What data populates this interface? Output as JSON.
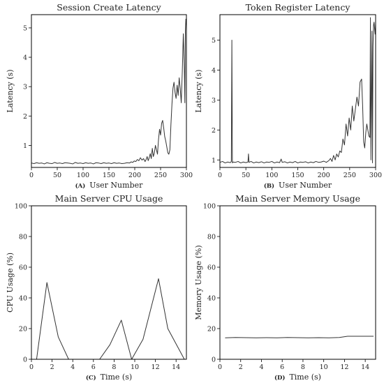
{
  "chart_data": [
    {
      "type": "line",
      "panel": "(A)",
      "title": "Session Create Latency",
      "xlabel": "User Number",
      "ylabel": "Latency (s)",
      "xlim": [
        0,
        300
      ],
      "ylim": [
        0.25,
        5.45
      ],
      "xticks": [
        0,
        50,
        100,
        150,
        200,
        250,
        300
      ],
      "yticks": [
        1,
        2,
        3,
        4,
        5
      ],
      "grid": false,
      "series": [
        {
          "x": [
            0,
            5,
            10,
            15,
            20,
            25,
            30,
            35,
            40,
            45,
            50,
            55,
            60,
            65,
            70,
            75,
            80,
            85,
            90,
            95,
            100,
            105,
            110,
            115,
            120,
            125,
            130,
            135,
            140,
            145,
            150,
            155,
            160,
            165,
            170,
            175,
            180,
            185,
            190,
            193,
            196,
            199,
            202,
            205,
            208,
            211,
            214,
            217,
            220,
            222,
            224,
            226,
            228,
            230,
            232,
            234,
            236,
            238,
            240,
            242,
            244,
            246,
            248,
            250,
            252,
            254,
            256,
            258,
            260,
            262,
            264,
            266,
            268,
            270,
            272,
            274,
            276,
            278,
            280,
            282,
            284,
            286,
            288,
            290,
            292,
            294,
            296,
            297,
            298,
            299,
            300
          ],
          "y": [
            0.4,
            0.38,
            0.41,
            0.39,
            0.4,
            0.37,
            0.41,
            0.39,
            0.38,
            0.42,
            0.39,
            0.4,
            0.38,
            0.41,
            0.4,
            0.39,
            0.37,
            0.42,
            0.39,
            0.4,
            0.38,
            0.41,
            0.39,
            0.4,
            0.37,
            0.41,
            0.4,
            0.38,
            0.41,
            0.39,
            0.4,
            0.38,
            0.41,
            0.39,
            0.4,
            0.38,
            0.39,
            0.41,
            0.4,
            0.44,
            0.42,
            0.47,
            0.45,
            0.52,
            0.48,
            0.58,
            0.5,
            0.55,
            0.45,
            0.52,
            0.62,
            0.48,
            0.58,
            0.72,
            0.55,
            0.9,
            0.62,
            0.75,
            1.0,
            0.85,
            0.7,
            1.2,
            1.55,
            1.35,
            1.75,
            1.85,
            1.6,
            1.3,
            1.15,
            0.95,
            0.75,
            0.7,
            0.85,
            1.7,
            2.4,
            2.95,
            3.15,
            2.8,
            2.6,
            3.05,
            2.7,
            3.3,
            2.95,
            2.45,
            3.5,
            4.8,
            3.6,
            2.45,
            4.9,
            5.3,
            5.1
          ]
        }
      ]
    },
    {
      "type": "line",
      "panel": "(B)",
      "title": "Token Register Latency",
      "xlabel": "User Number",
      "ylabel": "Latency (s)",
      "xlim": [
        0,
        300
      ],
      "ylim": [
        0.75,
        5.85
      ],
      "xticks": [
        0,
        50,
        100,
        150,
        200,
        250,
        300
      ],
      "yticks": [
        1,
        2,
        3,
        4,
        5
      ],
      "grid": false,
      "series": [
        {
          "x": [
            0,
            5,
            10,
            15,
            20,
            22,
            23,
            24,
            25,
            30,
            35,
            40,
            45,
            50,
            54,
            55,
            56,
            60,
            65,
            70,
            75,
            80,
            85,
            90,
            95,
            100,
            105,
            110,
            115,
            118,
            120,
            125,
            130,
            135,
            140,
            145,
            150,
            155,
            160,
            165,
            170,
            175,
            180,
            185,
            190,
            195,
            200,
            205,
            210,
            213,
            216,
            219,
            222,
            225,
            228,
            231,
            234,
            237,
            240,
            243,
            246,
            249,
            252,
            255,
            258,
            261,
            264,
            267,
            270,
            273,
            275,
            277,
            279,
            281,
            283,
            285,
            287,
            289,
            290,
            291,
            292,
            293,
            294,
            295,
            296,
            297,
            298,
            299,
            300
          ],
          "y": [
            0.92,
            0.95,
            0.9,
            0.93,
            0.91,
            0.95,
            5.0,
            0.9,
            0.93,
            0.92,
            0.95,
            0.9,
            0.93,
            0.91,
            0.93,
            1.2,
            0.92,
            0.95,
            0.9,
            0.93,
            0.91,
            0.94,
            0.9,
            0.93,
            0.92,
            0.95,
            0.9,
            0.93,
            0.91,
            1.03,
            0.92,
            0.94,
            0.9,
            0.93,
            0.91,
            0.95,
            0.9,
            0.93,
            0.92,
            0.94,
            0.9,
            0.93,
            0.91,
            0.95,
            0.92,
            0.93,
            0.96,
            0.92,
            0.98,
            1.05,
            0.95,
            1.15,
            1.0,
            1.2,
            1.1,
            1.3,
            1.25,
            1.7,
            1.5,
            2.2,
            1.8,
            2.4,
            2.0,
            2.8,
            2.3,
            2.7,
            3.1,
            2.8,
            3.6,
            3.7,
            2.8,
            1.6,
            1.4,
            1.9,
            2.2,
            2.0,
            1.8,
            1.75,
            5.75,
            1.0,
            3.2,
            5.3,
            0.9,
            4.8,
            5.5,
            5.6,
            5.4,
            5.2,
            5.55
          ]
        }
      ]
    },
    {
      "type": "line",
      "panel": "(C)",
      "title": "Main Server CPU Usage",
      "xlabel": "Time (s)",
      "ylabel": "CPU Usage (%)",
      "xlim": [
        0,
        15
      ],
      "ylim": [
        0,
        100
      ],
      "xticks": [
        0,
        2,
        4,
        6,
        8,
        10,
        12,
        14
      ],
      "yticks": [
        0,
        20,
        40,
        60,
        80,
        100
      ],
      "grid": false,
      "series": [
        {
          "x": [
            0.5,
            1.5,
            2.6,
            3.6,
            4.6,
            5.6,
            6.6,
            7.6,
            8.7,
            9.7,
            10.8,
            12.3,
            13.2,
            14.8
          ],
          "y": [
            0,
            50,
            14.5,
            0,
            0,
            0,
            0,
            9.5,
            25.5,
            0,
            13,
            52.5,
            20,
            0
          ]
        }
      ]
    },
    {
      "type": "line",
      "panel": "(D)",
      "title": "Main Server Memory Usage",
      "xlabel": "Time (s)",
      "ylabel": "Memory Usage (%)",
      "xlim": [
        0,
        15
      ],
      "ylim": [
        0,
        100
      ],
      "xticks": [
        0,
        2,
        4,
        6,
        8,
        10,
        12,
        14
      ],
      "yticks": [
        0,
        20,
        40,
        60,
        80,
        100
      ],
      "grid": false,
      "series": [
        {
          "x": [
            0.5,
            1.5,
            2.5,
            3.5,
            4.5,
            5.5,
            6.5,
            7.5,
            8.5,
            9.5,
            10.5,
            11.5,
            12.3,
            13.2,
            14.8
          ],
          "y": [
            14,
            14.2,
            14.1,
            14.0,
            14.1,
            14.0,
            14.2,
            14.1,
            14.0,
            14.1,
            14.0,
            14.2,
            15.0,
            15.0,
            15.0
          ]
        }
      ]
    }
  ]
}
